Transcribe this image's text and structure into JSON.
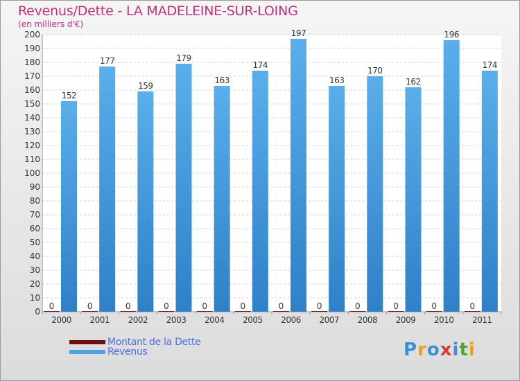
{
  "title": "Revenus/Dette - LA MADELEINE-SUR-LOING",
  "subtitle": "(en milliers d'€)",
  "colors": {
    "title": "#c0307e",
    "dette": "#6b0f0f",
    "revenus": "#4ea4e6",
    "legend_text": "#4a6cf0"
  },
  "chart_data": {
    "type": "bar",
    "categories": [
      "2000",
      "2001",
      "2002",
      "2003",
      "2004",
      "2005",
      "2006",
      "2007",
      "2008",
      "2009",
      "2010",
      "2011"
    ],
    "series": [
      {
        "name": "Montant de la Dette",
        "values": [
          0,
          0,
          0,
          0,
          0,
          0,
          0,
          0,
          0,
          0,
          0,
          0
        ]
      },
      {
        "name": "Revenus",
        "values": [
          152,
          177,
          159,
          179,
          163,
          174,
          197,
          163,
          170,
          162,
          196,
          174
        ]
      }
    ],
    "ylim": [
      0,
      200
    ],
    "yticks": [
      0,
      10,
      20,
      30,
      40,
      50,
      60,
      70,
      80,
      90,
      100,
      110,
      120,
      130,
      140,
      150,
      160,
      170,
      180,
      190,
      200
    ],
    "grid": true,
    "legend": "bottom-left"
  },
  "legend": {
    "items": [
      {
        "label": "Montant de la Dette"
      },
      {
        "label": "Revenus"
      }
    ]
  },
  "logo": {
    "letters": [
      "P",
      "r",
      "o",
      "x",
      "i",
      "t",
      "i"
    ],
    "colors": [
      "#3a8fd8",
      "#e8a020",
      "#3a8fd8",
      "#d83a3a",
      "#3a8fd8",
      "#4aa82a",
      "#e8a020"
    ]
  }
}
